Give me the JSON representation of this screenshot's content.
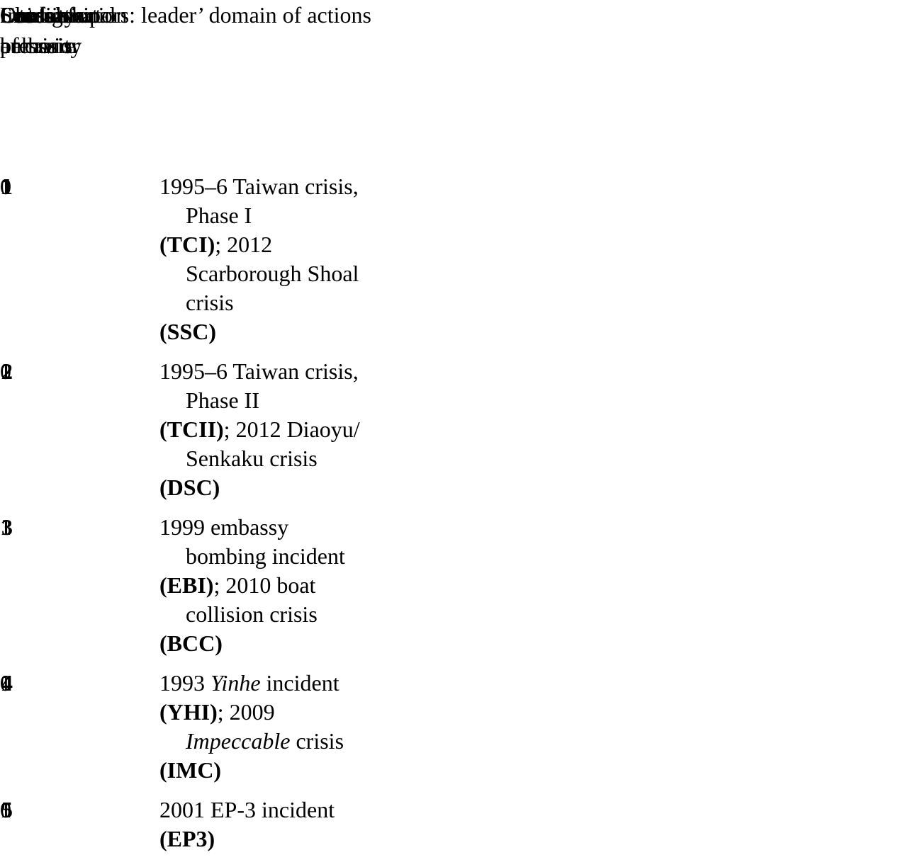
{
  "colors": {
    "text": "#000000",
    "background": "#ffffff",
    "rule": "#000000"
  },
  "header": {
    "spanner_causal": "Causal factors: leader’ domain of actions",
    "spanner_outcome": "Outcome",
    "col_configuration": "Configuration",
    "col_cases": "Cases",
    "col_severity_l1": "Severity",
    "col_severity_l2": "of crisis",
    "col_leadership_l1": "Leadership",
    "col_leadership_l2": "authority",
    "col_international_l1": "International",
    "col_international_l2": "pressure",
    "col_outcome_l1": "China’s",
    "col_outcome_l2": "behavior"
  },
  "rows": [
    {
      "configuration": "1",
      "case_lines": [
        {
          "indent": false,
          "runs": [
            {
              "t": "1995–6 Taiwan crisis,"
            }
          ]
        },
        {
          "indent": true,
          "runs": [
            {
              "t": "Phase I"
            }
          ]
        },
        {
          "indent": false,
          "runs": [
            {
              "t": "(TCI)",
              "b": true
            },
            {
              "t": "; 2012"
            }
          ]
        },
        {
          "indent": true,
          "runs": [
            {
              "t": "Scarborough Shoal"
            }
          ]
        },
        {
          "indent": true,
          "runs": [
            {
              "t": "crisis"
            }
          ]
        },
        {
          "indent": false,
          "runs": [
            {
              "t": "(SSC)",
              "b": true
            }
          ]
        }
      ],
      "severity_of_crisis": "0",
      "leadership_authority": "0",
      "international_pressure": "1",
      "chinas_behavior": "1"
    },
    {
      "configuration": "2",
      "case_lines": [
        {
          "indent": false,
          "runs": [
            {
              "t": "1995–6 Taiwan crisis,"
            }
          ]
        },
        {
          "indent": true,
          "runs": [
            {
              "t": "Phase II"
            }
          ]
        },
        {
          "indent": false,
          "runs": [
            {
              "t": "(TCII)",
              "b": true
            },
            {
              "t": "; 2012 Diaoyu/"
            }
          ]
        },
        {
          "indent": true,
          "runs": [
            {
              "t": "Senkaku crisis"
            }
          ]
        },
        {
          "indent": false,
          "runs": [
            {
              "t": "(DSC)",
              "b": true
            }
          ]
        }
      ],
      "severity_of_crisis": "1",
      "leadership_authority": "0",
      "international_pressure": "1",
      "chinas_behavior": "1"
    },
    {
      "configuration": "3",
      "case_lines": [
        {
          "indent": false,
          "runs": [
            {
              "t": "1999 embassy"
            }
          ]
        },
        {
          "indent": true,
          "runs": [
            {
              "t": "bombing incident"
            }
          ]
        },
        {
          "indent": false,
          "runs": [
            {
              "t": "(EBI)",
              "b": true
            },
            {
              "t": "; 2010 boat"
            }
          ]
        },
        {
          "indent": true,
          "runs": [
            {
              "t": "collision crisis"
            }
          ]
        },
        {
          "indent": false,
          "runs": [
            {
              "t": "(BCC)",
              "b": true
            }
          ]
        }
      ],
      "severity_of_crisis": "1",
      "leadership_authority": "1",
      "international_pressure": "1",
      "chinas_behavior": "1"
    },
    {
      "configuration": "4",
      "case_lines": [
        {
          "indent": false,
          "runs": [
            {
              "t": "1993 "
            },
            {
              "t": "Yinhe",
              "i": true
            },
            {
              "t": " incident"
            }
          ]
        },
        {
          "indent": false,
          "runs": [
            {
              "t": "(YHI)",
              "b": true
            },
            {
              "t": "; 2009"
            }
          ]
        },
        {
          "indent": true,
          "runs": [
            {
              "t": "Impeccable",
              "i": true
            },
            {
              "t": " crisis"
            }
          ]
        },
        {
          "indent": false,
          "runs": [
            {
              "t": "(IMC)",
              "b": true
            }
          ]
        }
      ],
      "severity_of_crisis": "0",
      "leadership_authority": "1",
      "international_pressure": "0",
      "chinas_behavior": "0"
    },
    {
      "configuration": "5",
      "case_lines": [
        {
          "indent": false,
          "runs": [
            {
              "t": "2001 EP-3 incident"
            }
          ]
        },
        {
          "indent": false,
          "runs": [
            {
              "t": "(EP3)",
              "b": true
            }
          ]
        }
      ],
      "severity_of_crisis": "1",
      "leadership_authority": "1",
      "international_pressure": "0",
      "chinas_behavior": "0"
    }
  ]
}
